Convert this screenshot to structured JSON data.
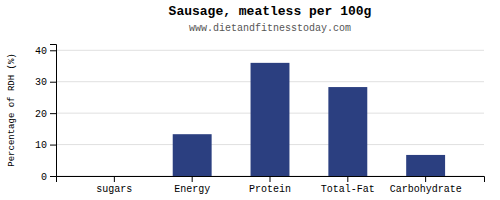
{
  "chart_data": {
    "type": "bar",
    "title": "Sausage, meatless per 100g",
    "subtitle": "www.dietandfitnesstoday.com",
    "ylabel": "Percentage of RDH (%)",
    "categories": [
      "sugars",
      "Energy",
      "Protein",
      "Total-Fat",
      "Carbohydrate"
    ],
    "values": [
      0.0,
      13.3,
      36.0,
      28.3,
      6.7
    ],
    "color": "#2b3f80",
    "ylim": [
      0,
      42
    ],
    "yticks": [
      0,
      10,
      20,
      30,
      40
    ],
    "grid": true
  }
}
